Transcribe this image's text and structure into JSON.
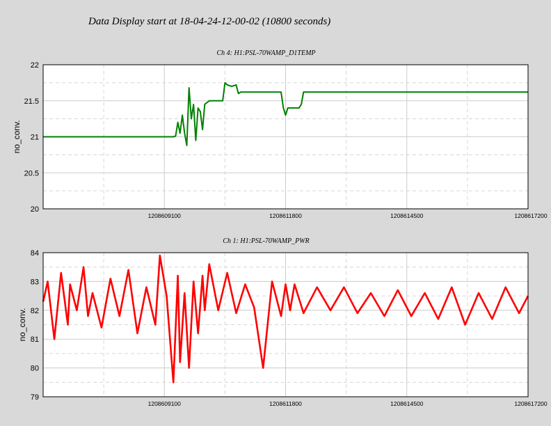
{
  "title": "Data Display start at 18-04-24-12-00-02 (10800 seconds)",
  "chart_data": [
    {
      "type": "line",
      "title": "Ch 4: H1:PSL-70WAMP_D1TEMP",
      "ylabel": "no_conv.",
      "xlabel": "",
      "color": "#008000",
      "xlim": [
        1208606400,
        1208617200
      ],
      "ylim": [
        20,
        22
      ],
      "yticks": [
        "20",
        "20.5",
        "21",
        "21.5",
        "22"
      ],
      "xticks": [
        1208609100,
        1208611800,
        1208614500,
        1208617200
      ],
      "grid": true,
      "series": [
        {
          "x": [
            1208606400,
            1208609000,
            1208609100,
            1208609200,
            1208609300,
            1208609350,
            1208609400,
            1208609450,
            1208609500,
            1208609550,
            1208609600,
            1208609650,
            1208609700,
            1208609750,
            1208609800,
            1208609850,
            1208609900,
            1208609950,
            1208610000,
            1208610100,
            1208610200,
            1208610300,
            1208610400,
            1208610450,
            1208610500,
            1208610600,
            1208610700,
            1208610750,
            1208610800,
            1208610900,
            1208611000,
            1208611100,
            1208611200,
            1208611300,
            1208611400,
            1208611500,
            1208611600,
            1208611700,
            1208611750,
            1208611800,
            1208611850,
            1208611900,
            1208612000,
            1208612100,
            1208612150,
            1208612200,
            1208612300,
            1208613000,
            1208614000,
            1208615000,
            1208616000,
            1208617200
          ],
          "y": [
            21.0,
            21.0,
            21.0,
            21.0,
            21.0,
            21.01,
            21.2,
            21.05,
            21.3,
            21.05,
            20.88,
            21.68,
            21.25,
            21.45,
            20.95,
            21.4,
            21.35,
            21.1,
            21.45,
            21.5,
            21.5,
            21.5,
            21.5,
            21.75,
            21.72,
            21.7,
            21.72,
            21.6,
            21.62,
            21.62,
            21.62,
            21.62,
            21.62,
            21.62,
            21.62,
            21.62,
            21.62,
            21.62,
            21.4,
            21.3,
            21.4,
            21.4,
            21.4,
            21.4,
            21.45,
            21.62,
            21.62,
            21.62,
            21.62,
            21.62,
            21.62,
            21.62
          ]
        }
      ]
    },
    {
      "type": "line",
      "title": "Ch 1: H1:PSL-70WAMP_PWR",
      "ylabel": "no_conv.",
      "xlabel": "",
      "color": "#ff0000",
      "xlim": [
        1208606400,
        1208617200
      ],
      "ylim": [
        79,
        84
      ],
      "yticks": [
        "79",
        "80",
        "81",
        "82",
        "83",
        "84"
      ],
      "xticks": [
        1208609100,
        1208611800,
        1208614500,
        1208617200
      ],
      "grid": true,
      "series": [
        {
          "x": [
            1208606400,
            1208606500,
            1208606650,
            1208606800,
            1208606950,
            1208607000,
            1208607150,
            1208607300,
            1208607400,
            1208607500,
            1208607700,
            1208607900,
            1208608100,
            1208608300,
            1208608500,
            1208608700,
            1208608900,
            1208609000,
            1208609150,
            1208609300,
            1208609400,
            1208609450,
            1208609550,
            1208609650,
            1208609750,
            1208609850,
            1208609950,
            1208610000,
            1208610100,
            1208610300,
            1208610500,
            1208610700,
            1208610900,
            1208611100,
            1208611300,
            1208611500,
            1208611700,
            1208611800,
            1208611900,
            1208612000,
            1208612200,
            1208612500,
            1208612800,
            1208613100,
            1208613400,
            1208613700,
            1208614000,
            1208614300,
            1208614600,
            1208614900,
            1208615200,
            1208615500,
            1208615800,
            1208616100,
            1208616400,
            1208616700,
            1208617000,
            1208617200
          ],
          "y": [
            82.3,
            83.0,
            81.0,
            83.3,
            81.5,
            82.9,
            82.0,
            83.5,
            81.8,
            82.6,
            81.4,
            83.1,
            81.8,
            83.4,
            81.2,
            82.8,
            81.5,
            83.9,
            82.5,
            79.5,
            83.2,
            80.2,
            82.6,
            80.0,
            83.0,
            81.2,
            83.2,
            82.0,
            83.6,
            82.0,
            83.3,
            81.9,
            82.9,
            82.1,
            80.0,
            83.0,
            81.8,
            82.9,
            82.0,
            82.9,
            81.9,
            82.8,
            82.0,
            82.8,
            81.9,
            82.6,
            81.8,
            82.7,
            81.8,
            82.6,
            81.7,
            82.8,
            81.5,
            82.6,
            81.7,
            82.8,
            81.9,
            82.5
          ]
        }
      ]
    }
  ]
}
